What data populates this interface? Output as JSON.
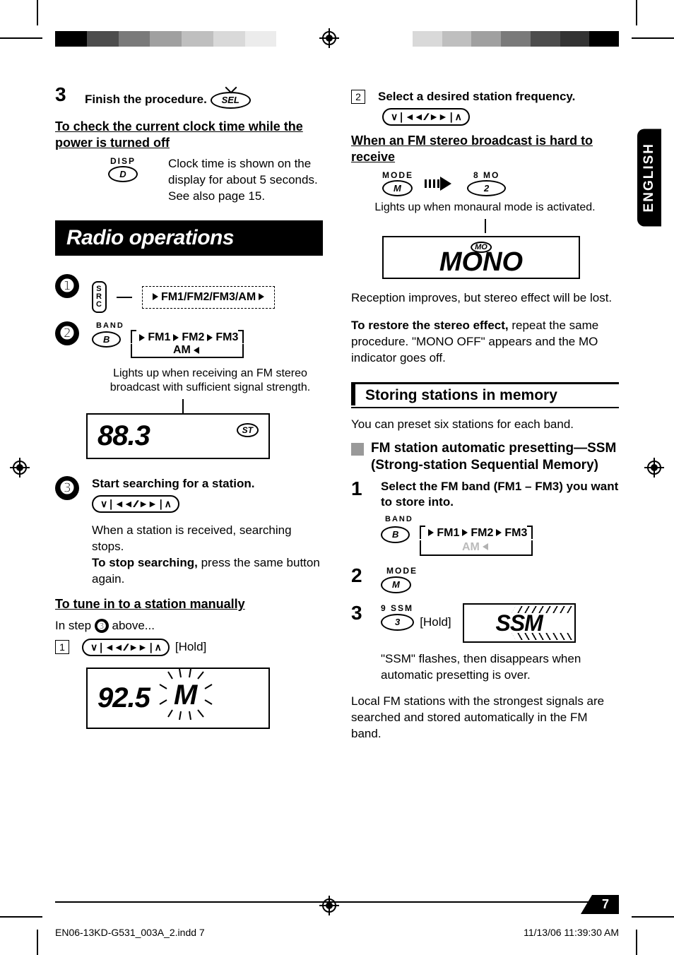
{
  "colorBars": {
    "left": [
      "#000000",
      "#4d4d4d",
      "#7a7a7a",
      "#a0a0a0",
      "#bfbfbf",
      "#d9d9d9",
      "#ececec",
      "#ffffff"
    ],
    "right": [
      "#ffffff",
      "#d9d9d9",
      "#bfbfbf",
      "#a0a0a0",
      "#7a7a7a",
      "#4d4d4d",
      "#333333",
      "#000000"
    ]
  },
  "left": {
    "step3_num": "3",
    "step3_text": "Finish the procedure.",
    "sel_btn": "SEL",
    "clock_heading": "To check the current clock time while the power is turned off",
    "disp_label": "DISP",
    "disp_btn": "D",
    "clock_desc": "Clock time is shown on the display for about 5 seconds. See also page 15.",
    "radio_ops": "Radio operations",
    "src_btn": "SRC",
    "band_flow_top": "FM1/FM2/FM3/AM",
    "band_label": "BAND",
    "band_btn": "B",
    "fm_cycle": {
      "fm1": "FM1",
      "fm2": "FM2",
      "fm3": "FM3",
      "am": "AM"
    },
    "stereo_caption": "Lights up when receiving an FM stereo broadcast with sufficient signal strength.",
    "lcd_freq1": "88.3",
    "st_tag": "ST",
    "step3c_text": "Start searching for a station.",
    "search_desc1": "When a station is received, searching stops.",
    "search_desc2_bold": "To stop searching,",
    "search_desc2_rest": " press the same button again.",
    "manual_heading": "To tune in to a station manually",
    "manual_intro_a": "In step ",
    "manual_intro_b": " above...",
    "sq1": "1",
    "hold": "[Hold]",
    "lcd_freq2": "92.5",
    "m_letter": "M"
  },
  "right": {
    "english": "ENGLISH",
    "sq2": "2",
    "select_freq": "Select a desired station frequency.",
    "fm_hard_heading": "When an FM stereo broadcast is hard to receive",
    "mode_label": "MODE",
    "mode_btn": "M",
    "eight_mo": "8  MO",
    "two_btn": "2",
    "mono_caption": "Lights up when monaural mode is activated.",
    "mo_tag": "MO",
    "mono_word": "MONO",
    "reception": "Reception improves, but stereo effect will be lost.",
    "restore_bold": "To restore the stereo effect,",
    "restore_rest": " repeat the same procedure. \"MONO OFF\" appears and the MO indicator goes off.",
    "storing_heading": "Storing stations in memory",
    "preset_intro": "You can preset six stations for each band.",
    "ssm_sub": "FM station automatic presetting—SSM (Strong-station Sequential Memory)",
    "step1_num": "1",
    "step1_text": "Select the FM band (FM1 – FM3) you want to store into.",
    "band_label2": "BAND",
    "band_btn2": "B",
    "fm_cycle2": {
      "fm1": "FM1",
      "fm2": "FM2",
      "fm3": "FM3",
      "am": "AM"
    },
    "step2_num": "2",
    "mode_label2": "MODE",
    "mode_btn2": "M",
    "step3_num": "3",
    "nine_ssm": "9  SSM",
    "three_btn": "3",
    "hold2": "[Hold]",
    "ssm_lcd": "SSM",
    "ssm_desc": "\"SSM\" flashes, then disappears when automatic presetting is over.",
    "local_desc": "Local FM stations with the strongest signals are searched and stored automatically in the FM band."
  },
  "page_num": "7",
  "footer": {
    "file": "EN06-13KD-G531_003A_2.indd   7",
    "time": "11/13/06   11:39:30 AM"
  },
  "seek_glyph": "∨❘◄◄ ∕∕ ►►❘∧"
}
